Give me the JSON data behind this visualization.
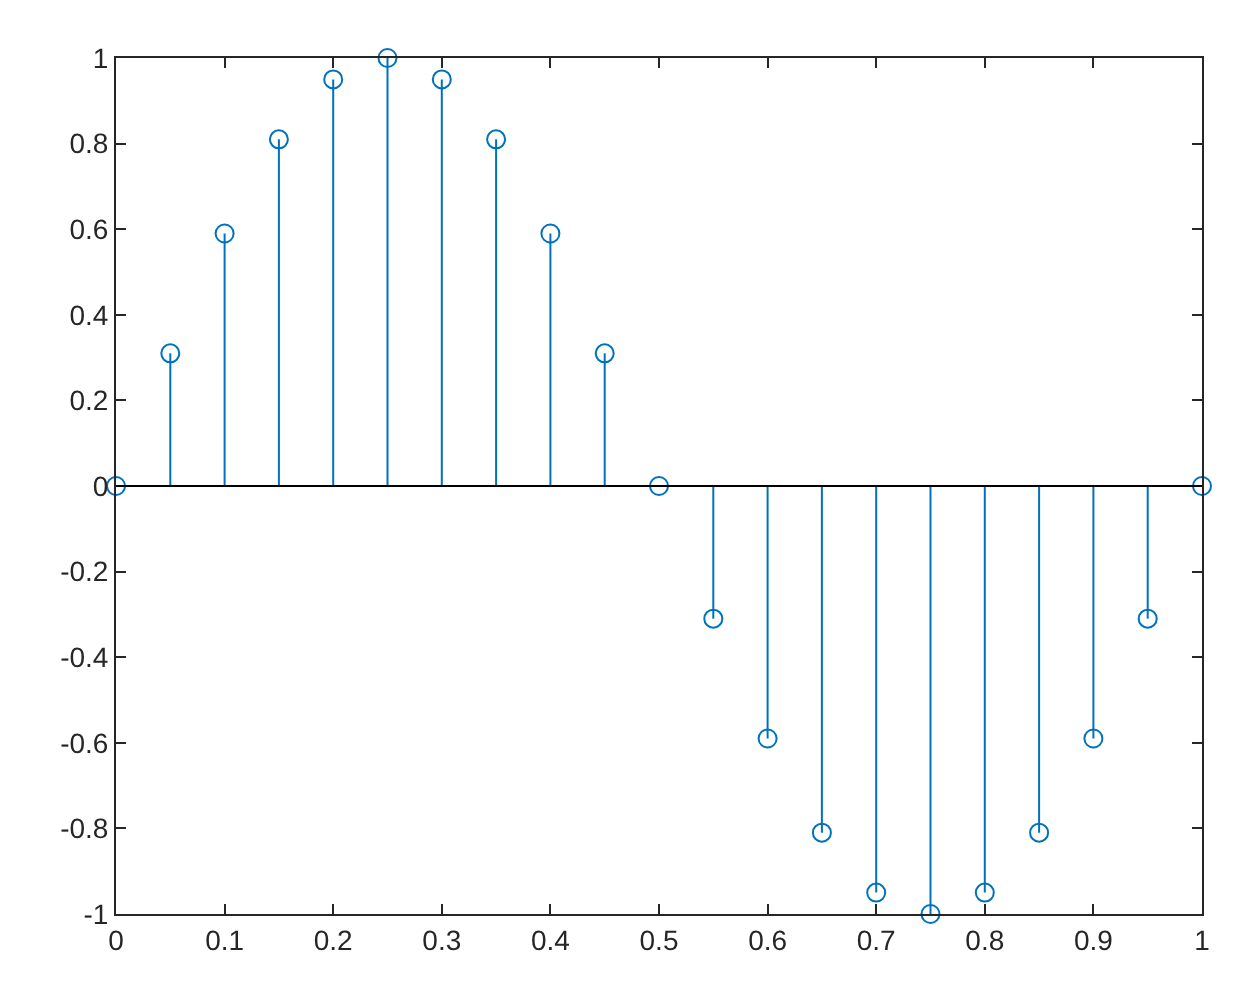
{
  "chart_data": {
    "type": "lollipop",
    "marker": "circle",
    "color": "#0072bd",
    "x": [
      0,
      0.05,
      0.1,
      0.15,
      0.2,
      0.25,
      0.3,
      0.35,
      0.4,
      0.45,
      0.5,
      0.55,
      0.6,
      0.65,
      0.7,
      0.75,
      0.8,
      0.85,
      0.9,
      0.95,
      1
    ],
    "values": [
      0,
      0.31,
      0.59,
      0.81,
      0.95,
      1,
      0.95,
      0.81,
      0.59,
      0.31,
      0,
      -0.31,
      -0.59,
      -0.81,
      -0.95,
      -1,
      -0.95,
      -0.81,
      -0.59,
      -0.31,
      0
    ],
    "xlim": [
      0,
      1
    ],
    "xticks": [
      0,
      0.1,
      0.2,
      0.3,
      0.4,
      0.5,
      0.6,
      0.7,
      0.8,
      0.9,
      1
    ],
    "ylim": [
      -1,
      1
    ],
    "yticks": [
      -1,
      -0.8,
      -0.6,
      -0.4,
      -0.2,
      0,
      0.2,
      0.4,
      0.6,
      0.8,
      1
    ],
    "ref_lines": [
      {
        "axis": "y",
        "value": 0,
        "color": "#000000"
      }
    ]
  }
}
